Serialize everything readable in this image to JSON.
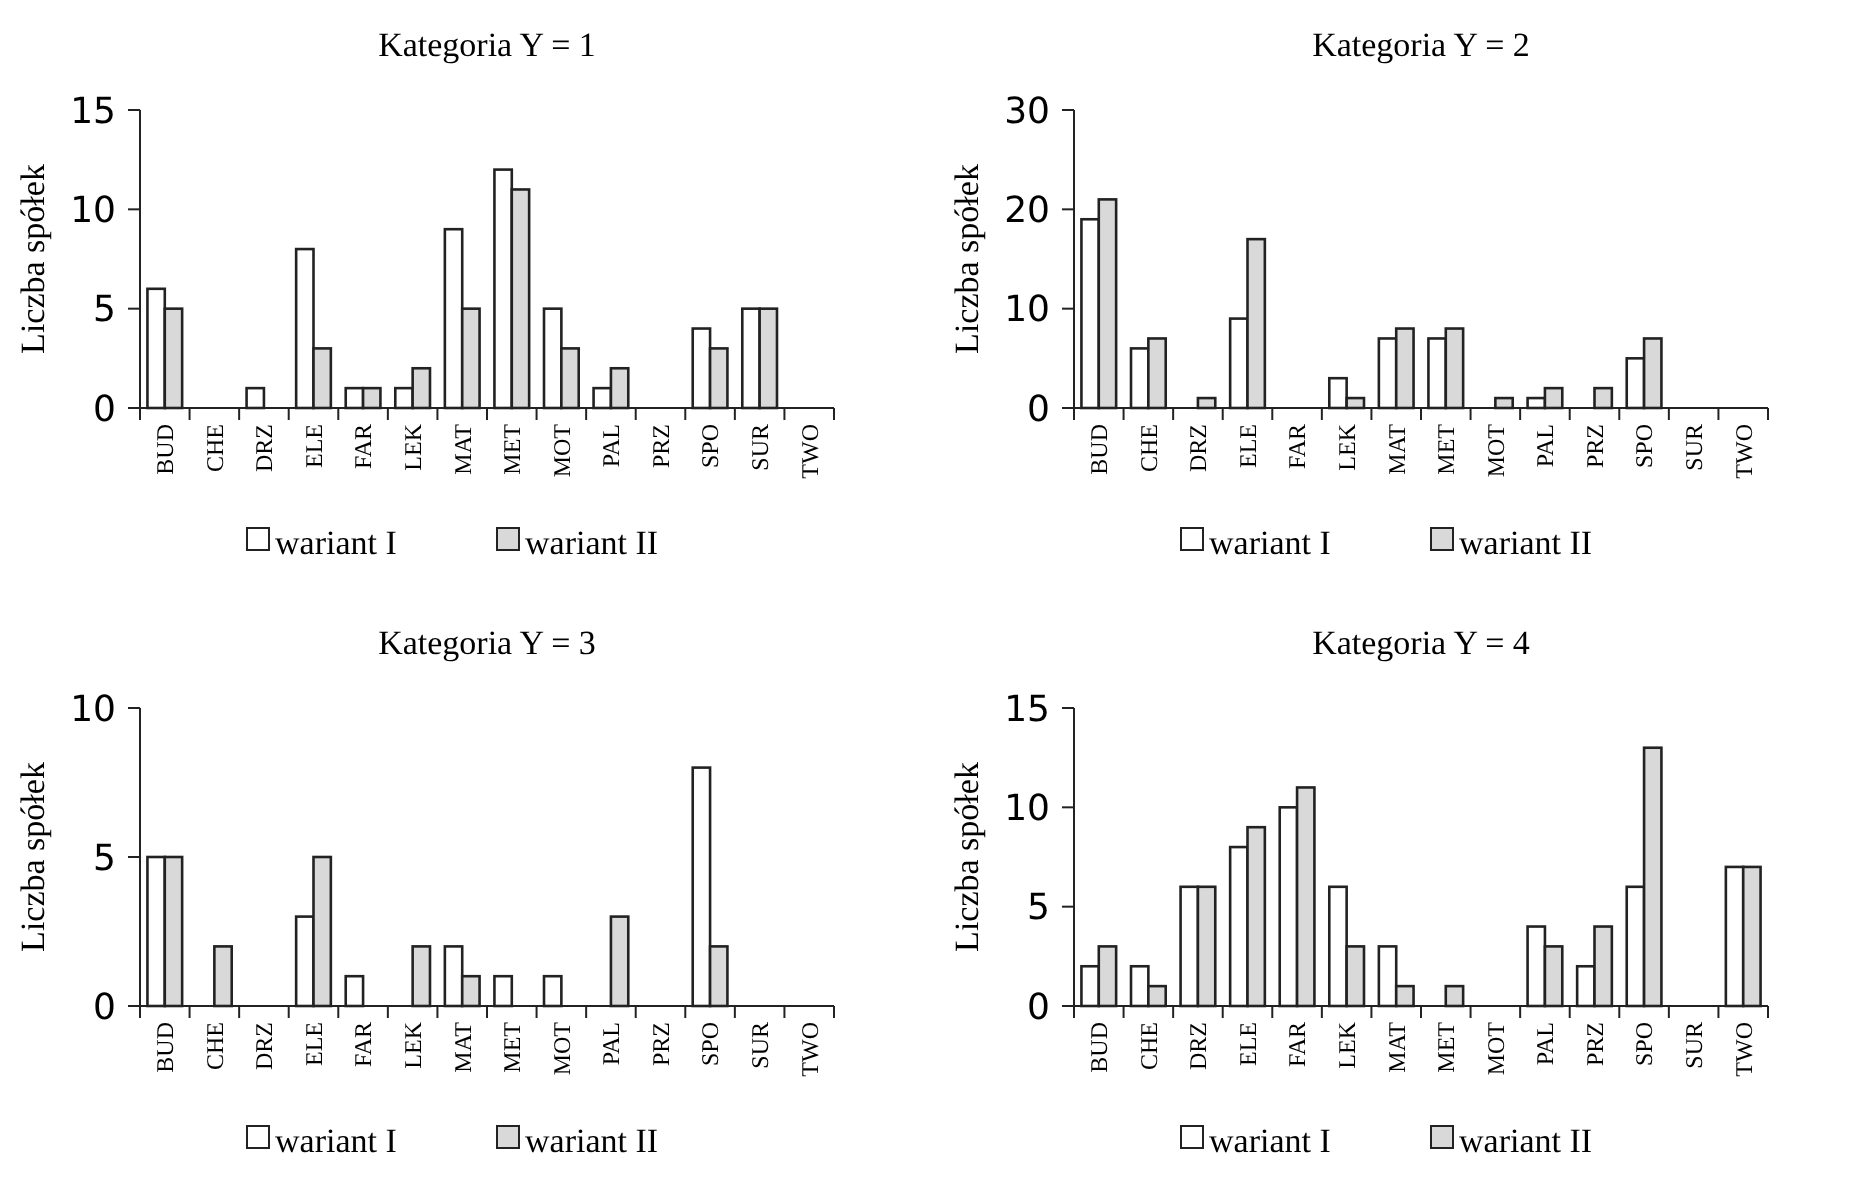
{
  "chart_data": [
    {
      "type": "bar",
      "title": "Kategoria Y = 1",
      "ylabel": "Liczba spółek",
      "categories": [
        "BUD",
        "CHE",
        "DRZ",
        "ELE",
        "FAR",
        "LEK",
        "MAT",
        "MET",
        "MOT",
        "PAL",
        "PRZ",
        "SPO",
        "SUR",
        "TWO"
      ],
      "ylim": [
        0,
        15
      ],
      "yticks": [
        0,
        5,
        10,
        15
      ],
      "legend": "bottom",
      "grid": false,
      "series": [
        {
          "name": "wariant I",
          "color": "#ffffff",
          "values": [
            6,
            0,
            1,
            8,
            1,
            1,
            9,
            12,
            5,
            1,
            0,
            4,
            5,
            0
          ]
        },
        {
          "name": "wariant II",
          "color": "#d9d9d9",
          "values": [
            5,
            0,
            0,
            3,
            1,
            2,
            5,
            11,
            3,
            2,
            0,
            3,
            5,
            0
          ]
        }
      ]
    },
    {
      "type": "bar",
      "title": "Kategoria Y = 2",
      "ylabel": "Liczba spółek",
      "categories": [
        "BUD",
        "CHE",
        "DRZ",
        "ELE",
        "FAR",
        "LEK",
        "MAT",
        "MET",
        "MOT",
        "PAL",
        "PRZ",
        "SPO",
        "SUR",
        "TWO"
      ],
      "ylim": [
        0,
        30
      ],
      "yticks": [
        0,
        10,
        20,
        30
      ],
      "legend": "bottom",
      "grid": false,
      "series": [
        {
          "name": "wariant I",
          "color": "#ffffff",
          "values": [
            19,
            6,
            0,
            9,
            0,
            3,
            7,
            7,
            0,
            1,
            0,
            5,
            0,
            0
          ]
        },
        {
          "name": "wariant II",
          "color": "#d9d9d9",
          "values": [
            21,
            7,
            1,
            17,
            0,
            1,
            8,
            8,
            1,
            2,
            2,
            7,
            0,
            0
          ]
        }
      ]
    },
    {
      "type": "bar",
      "title": "Kategoria Y = 3",
      "ylabel": "Liczba spółek",
      "categories": [
        "BUD",
        "CHE",
        "DRZ",
        "ELE",
        "FAR",
        "LEK",
        "MAT",
        "MET",
        "MOT",
        "PAL",
        "PRZ",
        "SPO",
        "SUR",
        "TWO"
      ],
      "ylim": [
        0,
        10
      ],
      "yticks": [
        0,
        5,
        10
      ],
      "legend": "bottom",
      "grid": false,
      "series": [
        {
          "name": "wariant I",
          "color": "#ffffff",
          "values": [
            5,
            0,
            0,
            3,
            1,
            0,
            2,
            1,
            1,
            0,
            0,
            8,
            0,
            0
          ]
        },
        {
          "name": "wariant II",
          "color": "#d9d9d9",
          "values": [
            5,
            2,
            0,
            5,
            0,
            2,
            1,
            0,
            0,
            3,
            0,
            2,
            0,
            0
          ]
        }
      ]
    },
    {
      "type": "bar",
      "title": "Kategoria Y = 4",
      "ylabel": "Liczba spółek",
      "categories": [
        "BUD",
        "CHE",
        "DRZ",
        "ELE",
        "FAR",
        "LEK",
        "MAT",
        "MET",
        "MOT",
        "PAL",
        "PRZ",
        "SPO",
        "SUR",
        "TWO"
      ],
      "ylim": [
        0,
        15
      ],
      "yticks": [
        0,
        5,
        10,
        15
      ],
      "legend": "bottom",
      "grid": false,
      "series": [
        {
          "name": "wariant I",
          "color": "#ffffff",
          "values": [
            2,
            2,
            6,
            8,
            10,
            6,
            3,
            0,
            0,
            4,
            2,
            6,
            0,
            7
          ]
        },
        {
          "name": "wariant II",
          "color": "#d9d9d9",
          "values": [
            3,
            1,
            6,
            9,
            11,
            3,
            1,
            1,
            0,
            3,
            4,
            13,
            0,
            7
          ]
        }
      ]
    }
  ]
}
